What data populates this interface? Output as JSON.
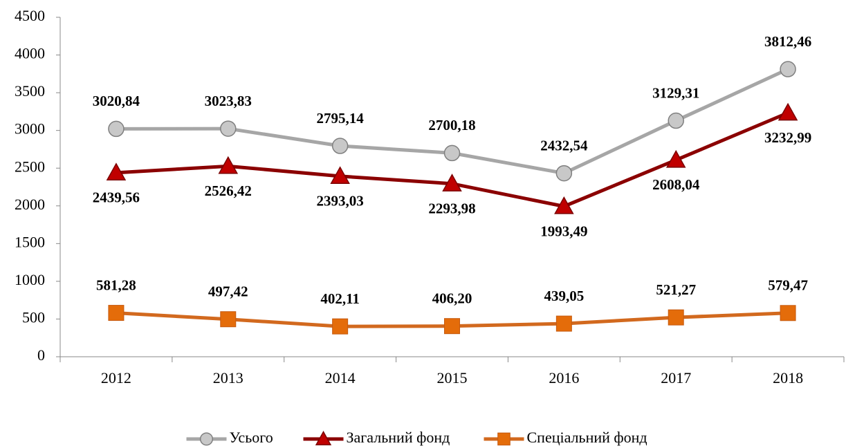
{
  "chart_data": {
    "type": "line",
    "categories": [
      "2012",
      "2013",
      "2014",
      "2015",
      "2016",
      "2017",
      "2018"
    ],
    "series": [
      {
        "name": "Усього",
        "color": "#a6a6a6",
        "marker": "circle",
        "values": [
          3020.84,
          3023.83,
          2795.14,
          2700.18,
          2432.54,
          3129.31,
          3812.46
        ],
        "value_labels": [
          "3020,84",
          "3023,83",
          "2795,14",
          "2700,18",
          "2432,54",
          "3129,31",
          "3812,46"
        ]
      },
      {
        "name": "Загальний фонд",
        "color": "#8b0000",
        "marker": "triangle",
        "values": [
          2439.56,
          2526.42,
          2393.03,
          2293.98,
          1993.49,
          2608.04,
          3232.99
        ],
        "value_labels": [
          "2439,56",
          "2526,42",
          "2393,03",
          "2293,98",
          "1993,49",
          "2608,04",
          "3232,99"
        ]
      },
      {
        "name": "Спеціальний фонд",
        "color": "#d2691e",
        "marker": "square",
        "values": [
          581.28,
          497.42,
          402.11,
          406.2,
          439.05,
          521.27,
          579.47
        ],
        "value_labels": [
          "581,28",
          "497,42",
          "402,11",
          "406,20",
          "439,05",
          "521,27",
          "579,47"
        ]
      }
    ],
    "ylim": [
      0,
      4500
    ],
    "yticks": [
      0,
      500,
      1000,
      1500,
      2000,
      2500,
      3000,
      3500,
      4000,
      4500
    ],
    "legend": "bottom"
  }
}
